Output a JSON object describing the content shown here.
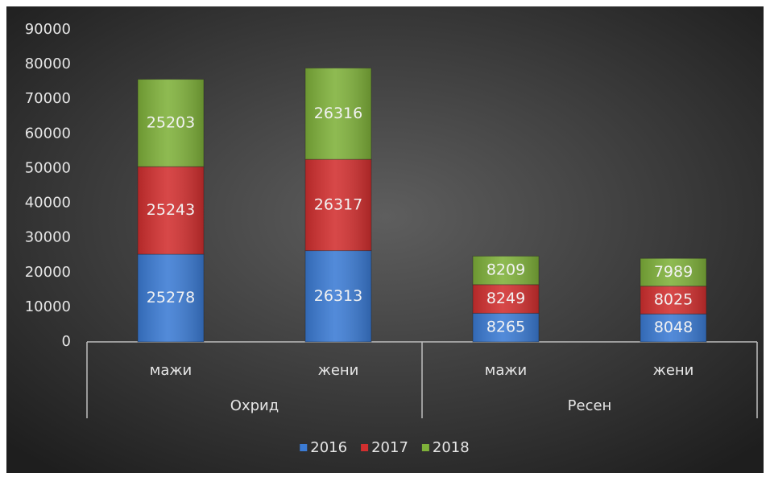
{
  "chart_data": {
    "type": "stacked-bar",
    "categories": [
      "мажи",
      "жени",
      "мажи",
      "жени"
    ],
    "groups": [
      "Охрид",
      "Ресен"
    ],
    "series": [
      {
        "name": "2016",
        "color": "#3b7bd4",
        "values": [
          25278,
          26313,
          8265,
          8048
        ]
      },
      {
        "name": "2017",
        "color": "#d22f2f",
        "values": [
          25243,
          26317,
          8249,
          8025
        ]
      },
      {
        "name": "2018",
        "color": "#7fb13a",
        "values": [
          25203,
          26316,
          8209,
          7989
        ]
      }
    ],
    "ylim": [
      0,
      90000
    ],
    "yticks": [
      0,
      10000,
      20000,
      30000,
      40000,
      50000,
      60000,
      70000,
      80000,
      90000
    ],
    "legend": "bottom"
  }
}
